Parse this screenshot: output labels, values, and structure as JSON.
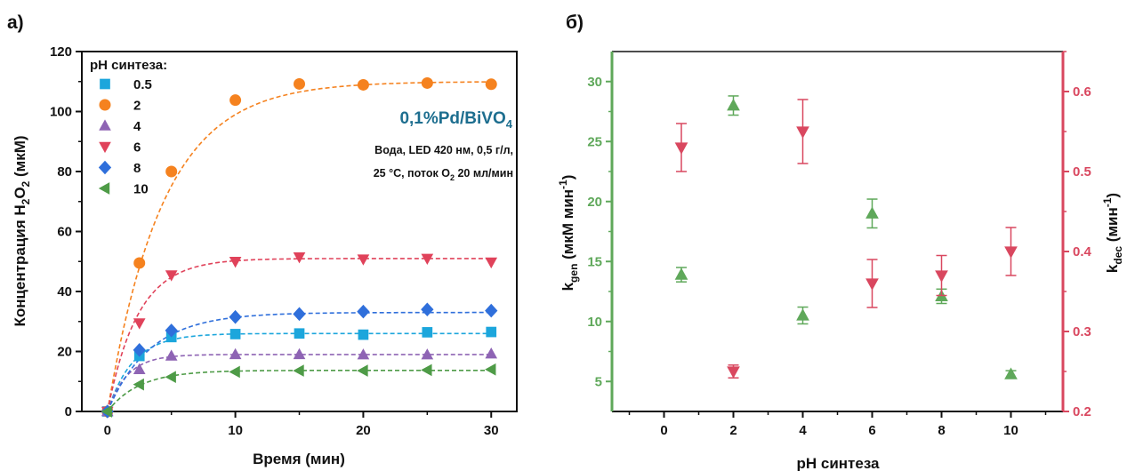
{
  "panels": {
    "a": {
      "letter": "а)"
    },
    "b": {
      "letter": "б)"
    }
  },
  "chart_data": [
    {
      "type": "scatter",
      "panel": "а)",
      "title": "",
      "xlabel": "Время (мин)",
      "ylabel": {
        "prefix": "Концентрация H",
        "sub1": "2",
        "mid": "O",
        "sub2": "2",
        "suffix": " (мкМ)"
      },
      "xlim": [
        -2,
        32
      ],
      "ylim": [
        0,
        120
      ],
      "xticks": [
        0,
        10,
        20,
        30
      ],
      "yticks": [
        0,
        20,
        40,
        60,
        80,
        100,
        120
      ],
      "grid": false,
      "legend": {
        "title": "pH синтеза:",
        "placement": "top-left"
      },
      "annotation": {
        "catalyst": {
          "main": "0,1%Pd/BiVO",
          "sub": "4"
        },
        "line1": "Вода, LED 420 нм, 0,5 г/л,",
        "line2": {
          "pre": "25 °C, поток O",
          "sub": "2",
          "post": " 20 мл/мин"
        }
      },
      "x": [
        0,
        2.5,
        5,
        10,
        15,
        20,
        25,
        30
      ],
      "series": [
        {
          "name": "0.5",
          "marker": "square",
          "color": "#1ca6dc",
          "values": [
            0,
            18.5,
            24.8,
            25.8,
            26.0,
            25.6,
            26.4,
            26.5
          ],
          "fit": {
            "a": 26.0,
            "k": 0.5
          }
        },
        {
          "name": "2",
          "marker": "circle",
          "color": "#f5821f",
          "values": [
            0,
            49.5,
            80.0,
            103.8,
            109.2,
            108.9,
            109.5,
            109.1
          ],
          "fit": {
            "a": 110.0,
            "k": 0.23
          }
        },
        {
          "name": "4",
          "marker": "triangle-up",
          "color": "#8e64b4",
          "values": [
            0,
            14.0,
            18.5,
            19.0,
            19.0,
            18.9,
            18.9,
            19.2
          ],
          "fit": {
            "a": 19.0,
            "k": 0.65
          }
        },
        {
          "name": "6",
          "marker": "triangle-down",
          "color": "#e0425a",
          "values": [
            0,
            29.5,
            45.5,
            50.0,
            51.5,
            50.8,
            51.0,
            49.8
          ],
          "fit": {
            "a": 51.0,
            "k": 0.42
          }
        },
        {
          "name": "8",
          "marker": "diamond",
          "color": "#2f6fdb",
          "values": [
            0,
            20.5,
            27.0,
            31.5,
            32.5,
            33.3,
            34.0,
            33.6
          ],
          "fit": {
            "a": 33.0,
            "k": 0.3
          }
        },
        {
          "name": "10",
          "marker": "triangle-left",
          "color": "#4e9b47",
          "values": [
            0,
            9.0,
            11.5,
            13.2,
            13.6,
            13.6,
            13.8,
            14.0
          ],
          "fit": {
            "a": 13.7,
            "k": 0.4
          }
        }
      ]
    },
    {
      "type": "scatter",
      "panel": "б)",
      "title": "",
      "xlabel": "pH синтеза",
      "ylabel_left": {
        "k": "k",
        "sub": "gen",
        "rest": " (мкМ мин",
        "sup": "-1",
        "close": ")"
      },
      "ylabel_right": {
        "k": "k",
        "sub": "dec",
        "rest": " (мин",
        "sup": "-1",
        "close": ")"
      },
      "xlim": [
        -1.5,
        11.5
      ],
      "ylim_left": [
        2.5,
        32.5
      ],
      "ylim_right": [
        0.2,
        0.65
      ],
      "xticks": [
        0,
        2,
        4,
        6,
        8,
        10
      ],
      "yticks_left": [
        5,
        10,
        15,
        20,
        25,
        30
      ],
      "yticks_right": [
        0.2,
        0.3,
        0.4,
        0.5,
        0.6
      ],
      "grid": false,
      "left_axis_color": "#5fa85a",
      "right_axis_color": "#d9475f",
      "x": [
        0.5,
        2,
        4,
        6,
        8,
        10
      ],
      "series": [
        {
          "axis": "left",
          "marker": "triangle-up",
          "color": "#5fa85a",
          "values": [
            13.9,
            28.0,
            10.5,
            19.0,
            12.1,
            5.6
          ],
          "err": [
            0.6,
            0.8,
            0.7,
            1.2,
            0.6,
            0.3
          ]
        },
        {
          "axis": "right",
          "marker": "triangle-down",
          "color": "#d9475f",
          "values": [
            0.53,
            0.25,
            0.55,
            0.36,
            0.37,
            0.4
          ],
          "err": [
            0.03,
            0.008,
            0.04,
            0.03,
            0.025,
            0.03
          ]
        }
      ]
    }
  ]
}
